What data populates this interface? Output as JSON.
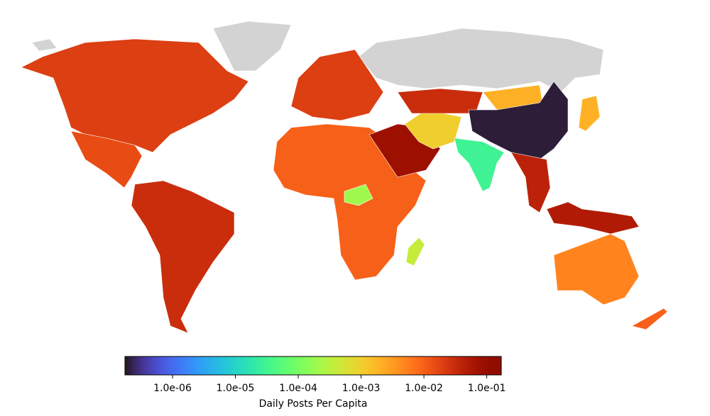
{
  "chart_data": {
    "type": "choropleth",
    "values": [
      0.02,
      0.015,
      0.03,
      0.02,
      0.01,
      0.0002,
      0.0004,
      0.08,
      0.001,
      0.03,
      0.002,
      2e-07,
      3e-05,
      0.04,
      0.002,
      0.05,
      0.005,
      0.01
    ],
    "clim": [
      1.75e-07,
      0.17
    ],
    "log_scale": true,
    "colormap": "turbo",
    "colorbar_ticks": [
      {
        "value": 1e-06,
        "label": "1.0e-06"
      },
      {
        "value": 1e-05,
        "label": "1.0e-05"
      },
      {
        "value": 0.0001,
        "label": "1.0e-04"
      },
      {
        "value": 0.001,
        "label": "1.0e-03"
      },
      {
        "value": 0.01,
        "label": "1.0e-02"
      },
      {
        "value": 0.1,
        "label": "1.0e-01"
      }
    ],
    "colorbar_label": "Daily Posts Per Capita"
  }
}
